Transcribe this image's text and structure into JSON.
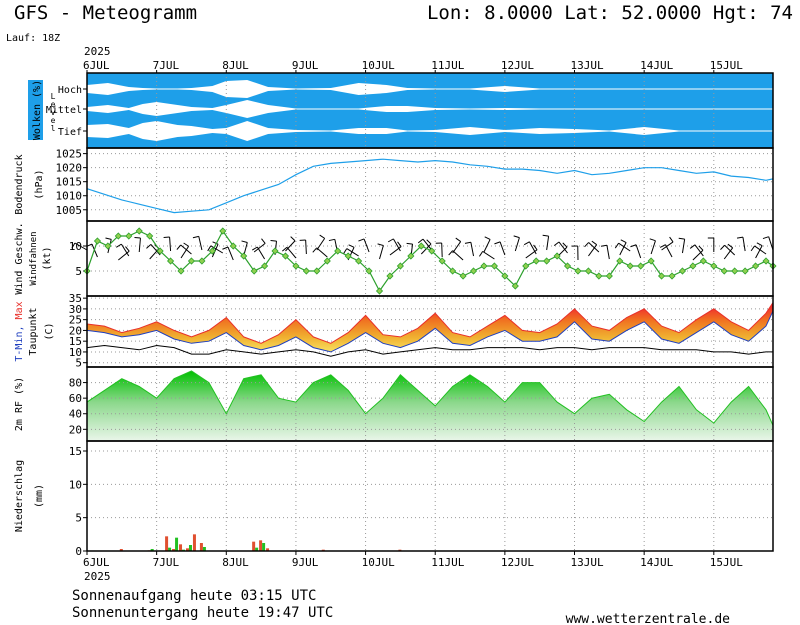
{
  "header": {
    "title": "GFS - Meteogramm",
    "coords": "Lon: 8.0000 Lat: 52.0000 Hgt: 74",
    "run": "Lauf: 18Z",
    "year": "2025"
  },
  "footer": {
    "sunrise": "Sonnenaufgang heute 03:15 UTC",
    "sunset": "Sonnenuntergang heute 19:47 UTC",
    "site": "www.wetterzentrale.de"
  },
  "colors": {
    "cloud_bg": "#1e9fe9",
    "pressure": "#1e9fe9",
    "wind_line": "#2ca02c",
    "wind_marker": "#90d050",
    "tmin": "#1f3fbf",
    "tmax": "#e8302a",
    "temp_fill_low": "#f0d020",
    "temp_fill_high": "#f03a20",
    "humidity": "#22c022",
    "precip_rain": "#e05030",
    "precip_conv": "#22c022"
  },
  "chart_data": [
    {
      "type": "area",
      "panel": "clouds",
      "ylabel": "Wolken (%)",
      "ylabel2": "Level",
      "levels": [
        "Hoch",
        "Mittel",
        "Tief"
      ],
      "x_days": [
        6,
        7,
        8,
        9,
        10,
        11,
        12,
        13,
        14,
        15
      ],
      "x_labels": [
        "6JUL",
        "7JUL",
        "8JUL",
        "9JUL",
        "10JUL",
        "11JUL",
        "12JUL",
        "13JUL",
        "14JUL",
        "15JUL"
      ],
      "series": [
        {
          "name": "Hoch",
          "x": [
            6.0,
            6.3,
            6.6,
            6.8,
            7.0,
            7.3,
            7.5,
            7.8,
            8.0,
            8.3,
            8.6,
            9.0,
            9.5,
            9.9,
            10.3,
            10.6,
            11.0,
            11.5,
            12.0,
            12.5,
            13.0,
            13.5,
            14.0,
            14.5,
            15.0,
            15.5,
            15.85
          ],
          "values": [
            40,
            60,
            20,
            10,
            5,
            5,
            10,
            30,
            80,
            90,
            20,
            5,
            10,
            60,
            40,
            10,
            5,
            5,
            30,
            5,
            5,
            5,
            5,
            5,
            5,
            5,
            5
          ]
        },
        {
          "name": "Mittel",
          "x": [
            6.0,
            6.3,
            6.6,
            6.8,
            7.0,
            7.3,
            7.5,
            7.8,
            8.0,
            8.3,
            8.6,
            9.0,
            9.5,
            9.9,
            10.3,
            10.6,
            11.0,
            11.5,
            12.0,
            12.5,
            13.0,
            13.5,
            14.0,
            14.5,
            15.0,
            15.5,
            15.85
          ],
          "values": [
            20,
            40,
            10,
            50,
            70,
            40,
            20,
            10,
            40,
            90,
            40,
            5,
            5,
            5,
            30,
            30,
            10,
            5,
            10,
            5,
            5,
            5,
            5,
            5,
            5,
            5,
            5
          ]
        },
        {
          "name": "Tief",
          "x": [
            6.0,
            6.3,
            6.6,
            6.8,
            7.0,
            7.3,
            7.5,
            7.8,
            8.0,
            8.3,
            8.6,
            9.0,
            9.5,
            9.9,
            10.3,
            10.6,
            11.0,
            11.5,
            12.0,
            12.5,
            13.0,
            13.5,
            14.0,
            14.5,
            15.0,
            15.5,
            15.85
          ],
          "values": [
            60,
            70,
            30,
            80,
            100,
            60,
            50,
            20,
            30,
            100,
            30,
            10,
            5,
            30,
            30,
            5,
            10,
            40,
            10,
            30,
            20,
            5,
            40,
            5,
            5,
            5,
            5
          ]
        }
      ]
    },
    {
      "type": "line",
      "panel": "pressure",
      "ylabel": "Bodendruck",
      "yunit": "(hPa)",
      "yticks": [
        1005,
        1010,
        1015,
        1020,
        1025
      ],
      "ylim": [
        1001,
        1027
      ],
      "x": [
        6.0,
        6.25,
        6.5,
        6.75,
        7.0,
        7.25,
        7.5,
        7.75,
        8.0,
        8.25,
        8.5,
        8.75,
        9.0,
        9.25,
        9.5,
        9.75,
        10.0,
        10.25,
        10.5,
        10.75,
        11.0,
        11.25,
        11.5,
        11.75,
        12.0,
        12.25,
        12.5,
        12.75,
        13.0,
        13.25,
        13.5,
        13.75,
        14.0,
        14.25,
        14.5,
        14.75,
        15.0,
        15.25,
        15.5,
        15.75,
        15.85
      ],
      "values": [
        1012.5,
        1010.5,
        1008.5,
        1007.0,
        1005.5,
        1004.0,
        1004.5,
        1005.0,
        1007.5,
        1010.0,
        1012.0,
        1014.0,
        1017.5,
        1020.5,
        1021.5,
        1022.0,
        1022.5,
        1023.0,
        1022.5,
        1022.0,
        1022.5,
        1022.0,
        1021.0,
        1020.5,
        1019.5,
        1019.5,
        1019.0,
        1018.0,
        1019.0,
        1017.5,
        1018.0,
        1019.0,
        1020.0,
        1020.0,
        1019.0,
        1018.0,
        1018.5,
        1017.0,
        1016.5,
        1015.5,
        1016.0
      ]
    },
    {
      "type": "line",
      "panel": "wind",
      "ylabel": "Wind Geschw.",
      "ylabel2": "Windfahnen",
      "yunit": "(kt)",
      "yticks": [
        5,
        10
      ],
      "ylim": [
        0,
        15
      ],
      "x": [
        6.0,
        6.15,
        6.3,
        6.45,
        6.6,
        6.75,
        6.9,
        7.05,
        7.2,
        7.35,
        7.5,
        7.65,
        7.8,
        7.95,
        8.1,
        8.25,
        8.4,
        8.55,
        8.7,
        8.85,
        9.0,
        9.15,
        9.3,
        9.45,
        9.6,
        9.75,
        9.9,
        10.05,
        10.2,
        10.35,
        10.5,
        10.65,
        10.8,
        10.95,
        11.1,
        11.25,
        11.4,
        11.55,
        11.7,
        11.85,
        12.0,
        12.15,
        12.3,
        12.45,
        12.6,
        12.75,
        12.9,
        13.05,
        13.2,
        13.35,
        13.5,
        13.65,
        13.8,
        13.95,
        14.1,
        14.25,
        14.4,
        14.55,
        14.7,
        14.85,
        15.0,
        15.15,
        15.3,
        15.45,
        15.6,
        15.75,
        15.85
      ],
      "values": [
        5,
        11,
        10,
        12,
        12,
        13,
        12,
        9,
        7,
        5,
        7,
        7,
        9,
        13,
        10,
        8,
        5,
        6,
        9,
        8,
        6,
        5,
        5,
        7,
        9,
        8,
        7,
        5,
        1,
        4,
        6,
        8,
        10,
        9,
        7,
        5,
        4,
        5,
        6,
        6,
        4,
        2,
        6,
        7,
        7,
        8,
        6,
        5,
        5,
        4,
        4,
        7,
        6,
        6,
        7,
        4,
        4,
        5,
        6,
        7,
        6,
        5,
        5,
        5,
        6,
        7,
        6
      ]
    },
    {
      "type": "area",
      "panel": "temperature",
      "ylabel": "T-Min, Max",
      "ylabel2": "Taupunkt",
      "yunit": "(C)",
      "yticks": [
        5,
        10,
        15,
        20,
        25,
        30,
        35
      ],
      "ylim": [
        3,
        36
      ],
      "x": [
        6.0,
        6.25,
        6.5,
        6.75,
        7.0,
        7.25,
        7.5,
        7.75,
        8.0,
        8.25,
        8.5,
        8.75,
        9.0,
        9.25,
        9.5,
        9.75,
        10.0,
        10.25,
        10.5,
        10.75,
        11.0,
        11.25,
        11.5,
        11.75,
        12.0,
        12.25,
        12.5,
        12.75,
        13.0,
        13.25,
        13.5,
        13.75,
        14.0,
        14.25,
        14.5,
        14.75,
        15.0,
        15.25,
        15.5,
        15.75,
        15.85
      ],
      "series": [
        {
          "name": "T-Min",
          "values": [
            20,
            19,
            17,
            18,
            20,
            16,
            14,
            15,
            19,
            13,
            11,
            13,
            17,
            12,
            10,
            14,
            19,
            14,
            12,
            15,
            21,
            14,
            13,
            17,
            20,
            15,
            15,
            17,
            24,
            16,
            15,
            20,
            24,
            16,
            14,
            19,
            24,
            18,
            15,
            22,
            29
          ]
        },
        {
          "name": "Max",
          "values": [
            23,
            22,
            19,
            21,
            24,
            20,
            17,
            20,
            26,
            17,
            14,
            18,
            25,
            17,
            14,
            19,
            27,
            18,
            17,
            21,
            28,
            19,
            17,
            22,
            27,
            20,
            19,
            23,
            30,
            22,
            20,
            26,
            30,
            22,
            19,
            25,
            30,
            24,
            20,
            28,
            33
          ]
        },
        {
          "name": "Taupunkt",
          "values": [
            12,
            13,
            12,
            11,
            13,
            12,
            9,
            9,
            11,
            10,
            9,
            10,
            11,
            10,
            8,
            10,
            11,
            9,
            10,
            11,
            12,
            11,
            11,
            12,
            12,
            12,
            11,
            12,
            12,
            11,
            12,
            12,
            12,
            11,
            11,
            11,
            10,
            10,
            9,
            10,
            10
          ]
        }
      ]
    },
    {
      "type": "area",
      "panel": "humidity",
      "ylabel": "2m RF (%)",
      "yticks": [
        20,
        40,
        60,
        80
      ],
      "ylim": [
        5,
        100
      ],
      "x": [
        6.0,
        6.25,
        6.5,
        6.75,
        7.0,
        7.25,
        7.5,
        7.75,
        8.0,
        8.25,
        8.5,
        8.75,
        9.0,
        9.25,
        9.5,
        9.75,
        10.0,
        10.25,
        10.5,
        10.75,
        11.0,
        11.25,
        11.5,
        11.75,
        12.0,
        12.25,
        12.5,
        12.75,
        13.0,
        13.25,
        13.5,
        13.75,
        14.0,
        14.25,
        14.5,
        14.75,
        15.0,
        15.25,
        15.5,
        15.75,
        15.85
      ],
      "values": [
        55,
        70,
        85,
        75,
        60,
        85,
        95,
        80,
        40,
        85,
        90,
        60,
        55,
        80,
        90,
        70,
        40,
        60,
        90,
        70,
        50,
        75,
        90,
        75,
        55,
        80,
        80,
        55,
        40,
        60,
        65,
        45,
        30,
        55,
        75,
        45,
        28,
        55,
        75,
        45,
        25
      ]
    },
    {
      "type": "bar",
      "panel": "precipitation",
      "ylabel": "Niederschlag",
      "yunit": "(mm)",
      "yticks": [
        0,
        5,
        10,
        15
      ],
      "ylim": [
        0,
        16.5
      ],
      "x": [
        6.5,
        6.9,
        7.15,
        7.25,
        7.35,
        7.45,
        7.55,
        7.65,
        8.4,
        8.5,
        8.6,
        9.4,
        10.5
      ],
      "series": [
        {
          "name": "Rain",
          "values": [
            0.3,
            0.1,
            2.2,
            0.3,
            1.0,
            0.4,
            2.5,
            1.2,
            1.4,
            1.6,
            0.4,
            0.2,
            0.2
          ]
        },
        {
          "name": "Convective",
          "values": [
            0.0,
            0.3,
            0.5,
            2.0,
            0.2,
            0.9,
            0.0,
            0.6,
            0.5,
            1.2,
            0.0,
            0.0,
            0.0
          ]
        }
      ]
    }
  ]
}
